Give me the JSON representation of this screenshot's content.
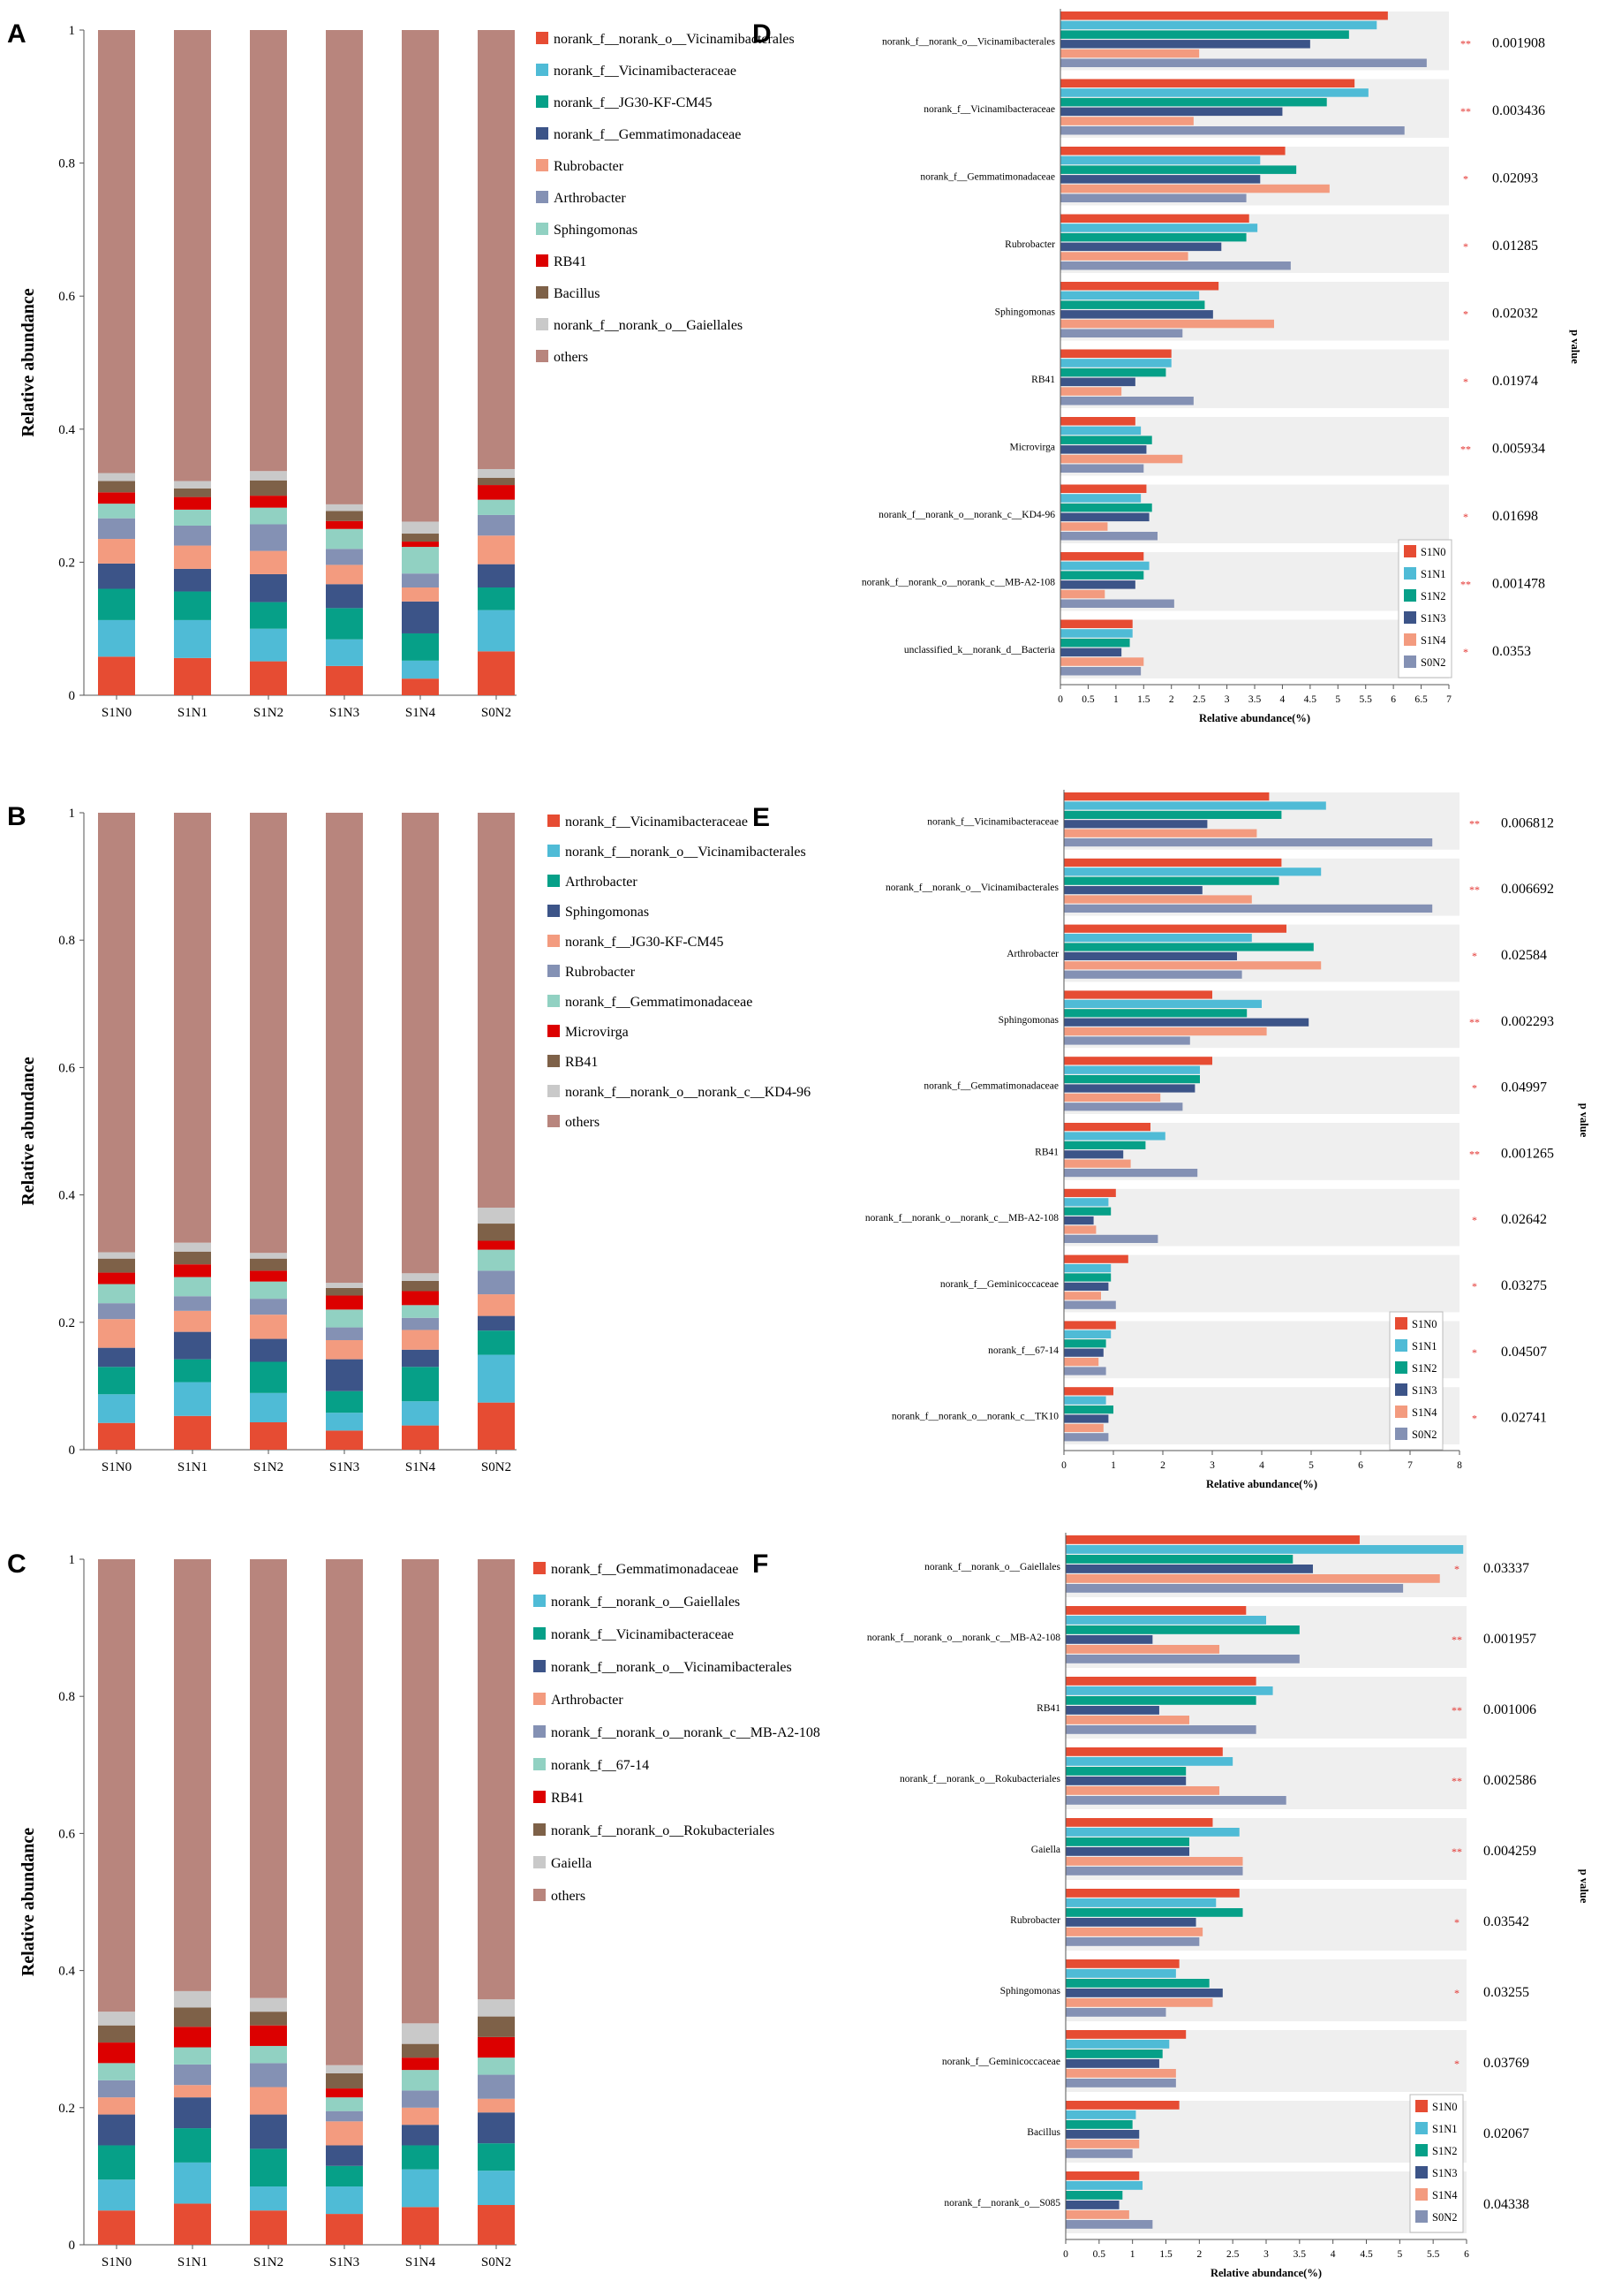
{
  "colors": {
    "S1N0": "#e64c33",
    "S1N1": "#4fbbd6",
    "S1N2": "#06a088",
    "S1N3": "#3c5488",
    "S1N4": "#f39b7f",
    "S0N2": "#8491b4",
    "panel_bg": "#efefef",
    "star": "#e3312d"
  },
  "chart_data": [
    {
      "panel": "A",
      "type": "bar",
      "stacked": true,
      "ylabel": "Relative abundance",
      "ylim": [
        0,
        1
      ],
      "yticks": [
        "0",
        "0.2",
        "0.4",
        "0.6",
        "0.8",
        "1"
      ],
      "categories": [
        "S1N0",
        "S1N1",
        "S1N2",
        "S1N3",
        "S1N4",
        "S0N2"
      ],
      "series": [
        {
          "name": "norank_f__norank_o__Vicinamibacterales",
          "color": "#e64c33",
          "values": [
            0.058,
            0.056,
            0.051,
            0.044,
            0.025,
            0.066
          ]
        },
        {
          "name": "norank_f__Vicinamibacteraceae",
          "color": "#4fbbd6",
          "values": [
            0.055,
            0.057,
            0.049,
            0.04,
            0.027,
            0.062
          ]
        },
        {
          "name": "norank_f__JG30-KF-CM45",
          "color": "#06a088",
          "values": [
            0.047,
            0.043,
            0.04,
            0.047,
            0.041,
            0.034
          ]
        },
        {
          "name": "norank_f__Gemmatimonadaceae",
          "color": "#3c5488",
          "values": [
            0.038,
            0.034,
            0.042,
            0.036,
            0.048,
            0.035
          ]
        },
        {
          "name": "Rubrobacter",
          "color": "#f39b7f",
          "values": [
            0.037,
            0.035,
            0.035,
            0.029,
            0.021,
            0.043
          ]
        },
        {
          "name": "Arthrobacter",
          "color": "#8491b4",
          "values": [
            0.031,
            0.03,
            0.04,
            0.024,
            0.021,
            0.031
          ]
        },
        {
          "name": "Sphingomonas",
          "color": "#91d1c2",
          "values": [
            0.022,
            0.024,
            0.025,
            0.03,
            0.04,
            0.023
          ]
        },
        {
          "name": "RB41",
          "color": "#dc0000",
          "values": [
            0.017,
            0.019,
            0.018,
            0.012,
            0.008,
            0.022
          ]
        },
        {
          "name": "Bacillus",
          "color": "#7e6148",
          "values": [
            0.017,
            0.013,
            0.023,
            0.015,
            0.012,
            0.011
          ]
        },
        {
          "name": "norank_f__norank_o__Gaiellales",
          "color": "#c9c9c9",
          "values": [
            0.012,
            0.011,
            0.014,
            0.01,
            0.018,
            0.013
          ]
        },
        {
          "name": "others",
          "color": "#b8857d",
          "values": [
            0.666,
            0.678,
            0.663,
            0.713,
            0.739,
            0.66
          ]
        }
      ]
    },
    {
      "panel": "B",
      "type": "bar",
      "stacked": true,
      "ylabel": "Relative abundance",
      "ylim": [
        0,
        1
      ],
      "yticks": [
        "0",
        "0.2",
        "0.4",
        "0.6",
        "0.8",
        "1"
      ],
      "categories": [
        "S1N0",
        "S1N1",
        "S1N2",
        "S1N3",
        "S1N4",
        "S0N2"
      ],
      "series": [
        {
          "name": "norank_f__Vicinamibacteraceae",
          "color": "#e64c33",
          "values": [
            0.042,
            0.053,
            0.043,
            0.03,
            0.038,
            0.074
          ]
        },
        {
          "name": "norank_f__norank_o__Vicinamibacterales",
          "color": "#4fbbd6",
          "values": [
            0.045,
            0.053,
            0.046,
            0.028,
            0.038,
            0.075
          ]
        },
        {
          "name": "Arthrobacter",
          "color": "#06a088",
          "values": [
            0.043,
            0.036,
            0.049,
            0.034,
            0.054,
            0.038
          ]
        },
        {
          "name": "Sphingomonas",
          "color": "#3c5488",
          "values": [
            0.03,
            0.043,
            0.036,
            0.05,
            0.027,
            0.023
          ]
        },
        {
          "name": "norank_f__JG30-KF-CM45",
          "color": "#f39b7f",
          "values": [
            0.045,
            0.033,
            0.038,
            0.03,
            0.031,
            0.034
          ]
        },
        {
          "name": "Rubrobacter",
          "color": "#8491b4",
          "values": [
            0.025,
            0.023,
            0.025,
            0.02,
            0.019,
            0.037
          ]
        },
        {
          "name": "norank_f__Gemmatimonadaceae",
          "color": "#91d1c2",
          "values": [
            0.03,
            0.03,
            0.027,
            0.028,
            0.02,
            0.033
          ]
        },
        {
          "name": "Microvirga",
          "color": "#dc0000",
          "values": [
            0.018,
            0.02,
            0.017,
            0.022,
            0.022,
            0.014
          ]
        },
        {
          "name": "RB41",
          "color": "#7e6148",
          "values": [
            0.022,
            0.02,
            0.019,
            0.012,
            0.016,
            0.027
          ]
        },
        {
          "name": "norank_f__norank_o__norank_c__KD4-96",
          "color": "#c9c9c9",
          "values": [
            0.01,
            0.014,
            0.009,
            0.008,
            0.012,
            0.025
          ]
        },
        {
          "name": "others",
          "color": "#b8857d",
          "values": [
            0.69,
            0.675,
            0.691,
            0.738,
            0.723,
            0.62
          ]
        }
      ]
    },
    {
      "panel": "C",
      "type": "bar",
      "stacked": true,
      "ylabel": "Relative abundance",
      "ylim": [
        0,
        1
      ],
      "yticks": [
        "0",
        "0.2",
        "0.4",
        "0.6",
        "0.8",
        "1"
      ],
      "categories": [
        "S1N0",
        "S1N1",
        "S1N2",
        "S1N3",
        "S1N4",
        "S0N2"
      ],
      "series": [
        {
          "name": "norank_f__Gemmatimonadaceae",
          "color": "#e64c33",
          "values": [
            0.05,
            0.06,
            0.05,
            0.045,
            0.055,
            0.058
          ]
        },
        {
          "name": "norank_f__norank_o__Gaiellales",
          "color": "#4fbbd6",
          "values": [
            0.045,
            0.06,
            0.035,
            0.04,
            0.055,
            0.05
          ]
        },
        {
          "name": "norank_f__Vicinamibacteraceae",
          "color": "#06a088",
          "values": [
            0.05,
            0.05,
            0.055,
            0.03,
            0.035,
            0.04
          ]
        },
        {
          "name": "norank_f__norank_o__Vicinamibacterales",
          "color": "#3c5488",
          "values": [
            0.045,
            0.045,
            0.05,
            0.03,
            0.03,
            0.045
          ]
        },
        {
          "name": "Arthrobacter",
          "color": "#f39b7f",
          "values": [
            0.025,
            0.018,
            0.04,
            0.035,
            0.025,
            0.02
          ]
        },
        {
          "name": "norank_f__norank_o__norank_c__MB-A2-108",
          "color": "#8491b4",
          "values": [
            0.025,
            0.03,
            0.035,
            0.015,
            0.025,
            0.035
          ]
        },
        {
          "name": "norank_f__67-14",
          "color": "#91d1c2",
          "values": [
            0.025,
            0.025,
            0.025,
            0.02,
            0.03,
            0.025
          ]
        },
        {
          "name": "RB41",
          "color": "#dc0000",
          "values": [
            0.03,
            0.03,
            0.03,
            0.013,
            0.018,
            0.03
          ]
        },
        {
          "name": "norank_f__norank_o__Rokubacteriales",
          "color": "#7e6148",
          "values": [
            0.025,
            0.028,
            0.02,
            0.022,
            0.02,
            0.03
          ]
        },
        {
          "name": "Gaiella",
          "color": "#c9c9c9",
          "values": [
            0.02,
            0.024,
            0.02,
            0.012,
            0.03,
            0.025
          ]
        },
        {
          "name": "others",
          "color": "#b8857d",
          "values": [
            0.66,
            0.63,
            0.64,
            0.738,
            0.677,
            0.642
          ]
        }
      ]
    },
    {
      "panel": "D",
      "type": "bar",
      "orientation": "horizontal",
      "xlabel": "Relative abundance(%)",
      "side_label": "p value",
      "xlim": [
        0,
        7
      ],
      "xticks": [
        "0",
        "0.5",
        "1",
        "1.5",
        "2",
        "2.5",
        "3",
        "3.5",
        "4",
        "4.5",
        "5",
        "5.5",
        "6",
        "6.5",
        "7"
      ],
      "legend": [
        "S1N0",
        "S1N1",
        "S1N2",
        "S1N3",
        "S1N4",
        "S0N2"
      ],
      "categories": [
        {
          "name": "norank_f__norank_o__Vicinamibacterales",
          "values": [
            5.9,
            5.7,
            5.2,
            4.5,
            2.5,
            6.6
          ],
          "p": "0.001908",
          "sig": "**"
        },
        {
          "name": "norank_f__Vicinamibacteraceae",
          "values": [
            5.3,
            5.55,
            4.8,
            4.0,
            2.4,
            6.2
          ],
          "p": "0.003436",
          "sig": "**"
        },
        {
          "name": "norank_f__Gemmatimonadaceae",
          "values": [
            4.05,
            3.6,
            4.25,
            3.6,
            4.85,
            3.35
          ],
          "p": "0.02093",
          "sig": "*"
        },
        {
          "name": "Rubrobacter",
          "values": [
            3.4,
            3.55,
            3.35,
            2.9,
            2.3,
            4.15
          ],
          "p": "0.01285",
          "sig": "*"
        },
        {
          "name": "Sphingomonas",
          "values": [
            2.85,
            2.5,
            2.6,
            2.75,
            3.85,
            2.2
          ],
          "p": "0.02032",
          "sig": "*"
        },
        {
          "name": "RB41",
          "values": [
            2.0,
            2.0,
            1.9,
            1.35,
            1.1,
            2.4
          ],
          "p": "0.01974",
          "sig": "*"
        },
        {
          "name": "Microvirga",
          "values": [
            1.35,
            1.45,
            1.65,
            1.55,
            2.2,
            1.5
          ],
          "p": "0.005934",
          "sig": "**"
        },
        {
          "name": "norank_f__norank_o__norank_c__KD4-96",
          "values": [
            1.55,
            1.45,
            1.65,
            1.6,
            0.85,
            1.75
          ],
          "p": "0.01698",
          "sig": "*"
        },
        {
          "name": "norank_f__norank_o__norank_c__MB-A2-108",
          "values": [
            1.5,
            1.6,
            1.5,
            1.35,
            0.8,
            2.05
          ],
          "p": "0.001478",
          "sig": "**"
        },
        {
          "name": "unclassified_k__norank_d__Bacteria",
          "values": [
            1.3,
            1.3,
            1.25,
            1.1,
            1.5,
            1.45
          ],
          "p": "0.0353",
          "sig": "*"
        }
      ]
    },
    {
      "panel": "E",
      "type": "bar",
      "orientation": "horizontal",
      "xlabel": "Relative abundance(%)",
      "side_label": "p value",
      "xlim": [
        0,
        8
      ],
      "xticks": [
        "0",
        "1",
        "2",
        "3",
        "4",
        "5",
        "6",
        "7",
        "8"
      ],
      "legend": [
        "S1N0",
        "S1N1",
        "S1N2",
        "S1N3",
        "S1N4",
        "S0N2"
      ],
      "categories": [
        {
          "name": "norank_f__Vicinamibacteraceae",
          "values": [
            4.15,
            5.3,
            4.4,
            2.9,
            3.9,
            7.45
          ],
          "p": "0.006812",
          "sig": "**"
        },
        {
          "name": "norank_f__norank_o__Vicinamibacterales",
          "values": [
            4.4,
            5.2,
            4.35,
            2.8,
            3.8,
            7.45
          ],
          "p": "0.006692",
          "sig": "**"
        },
        {
          "name": "Arthrobacter",
          "values": [
            4.5,
            3.8,
            5.05,
            3.5,
            5.2,
            3.6
          ],
          "p": "0.02584",
          "sig": "*"
        },
        {
          "name": "Sphingomonas",
          "values": [
            3.0,
            4.0,
            3.7,
            4.95,
            4.1,
            2.55
          ],
          "p": "0.002293",
          "sig": "**"
        },
        {
          "name": "norank_f__Gemmatimonadaceae",
          "values": [
            3.0,
            2.75,
            2.75,
            2.65,
            1.95,
            2.4
          ],
          "p": "0.04997",
          "sig": "*"
        },
        {
          "name": "RB41",
          "values": [
            1.75,
            2.05,
            1.65,
            1.2,
            1.35,
            2.7
          ],
          "p": "0.001265",
          "sig": "**"
        },
        {
          "name": "norank_f__norank_o__norank_c__MB-A2-108",
          "values": [
            1.05,
            0.9,
            0.95,
            0.6,
            0.65,
            1.9
          ],
          "p": "0.02642",
          "sig": "*"
        },
        {
          "name": "norank_f__Geminicoccaceae",
          "values": [
            1.3,
            0.95,
            0.95,
            0.9,
            0.75,
            1.05
          ],
          "p": "0.03275",
          "sig": "*"
        },
        {
          "name": "norank_f__67-14",
          "values": [
            1.05,
            0.95,
            0.85,
            0.8,
            0.7,
            0.85
          ],
          "p": "0.04507",
          "sig": "*"
        },
        {
          "name": "norank_f__norank_o__norank_c__TK10",
          "values": [
            1.0,
            0.85,
            1.0,
            0.9,
            0.8,
            0.9
          ],
          "p": "0.02741",
          "sig": "*"
        }
      ]
    },
    {
      "panel": "F",
      "type": "bar",
      "orientation": "horizontal",
      "xlabel": "Relative abundance(%)",
      "side_label": "p value",
      "xlim": [
        0,
        6
      ],
      "xticks": [
        "0",
        "0.5",
        "1",
        "1.5",
        "2",
        "2.5",
        "3",
        "3.5",
        "4",
        "4.5",
        "5",
        "5.5",
        "6"
      ],
      "legend": [
        "S1N0",
        "S1N1",
        "S1N2",
        "S1N3",
        "S1N4",
        "S0N2"
      ],
      "categories": [
        {
          "name": "norank_f__norank_o__Gaiellales",
          "values": [
            4.4,
            5.95,
            3.4,
            3.7,
            5.6,
            5.05
          ],
          "p": "0.03337",
          "sig": "*"
        },
        {
          "name": "norank_f__norank_o__norank_c__MB-A2-108",
          "values": [
            2.7,
            3.0,
            3.5,
            1.3,
            2.3,
            3.5
          ],
          "p": "0.001957",
          "sig": "**"
        },
        {
          "name": "RB41",
          "values": [
            2.85,
            3.1,
            2.85,
            1.4,
            1.85,
            2.85
          ],
          "p": "0.001006",
          "sig": "**"
        },
        {
          "name": "norank_f__norank_o__Rokubacteriales",
          "values": [
            2.35,
            2.5,
            1.8,
            1.8,
            2.3,
            3.3
          ],
          "p": "0.002586",
          "sig": "**"
        },
        {
          "name": "Gaiella",
          "values": [
            2.2,
            2.6,
            1.85,
            1.85,
            2.65,
            2.65
          ],
          "p": "0.004259",
          "sig": "**"
        },
        {
          "name": "Rubrobacter",
          "values": [
            2.6,
            2.25,
            2.65,
            1.95,
            2.05,
            2.0
          ],
          "p": "0.03542",
          "sig": "*"
        },
        {
          "name": "Sphingomonas",
          "values": [
            1.7,
            1.65,
            2.15,
            2.35,
            2.2,
            1.5
          ],
          "p": "0.03255",
          "sig": "*"
        },
        {
          "name": "norank_f__Geminicoccaceae",
          "values": [
            1.8,
            1.55,
            1.45,
            1.4,
            1.65,
            1.65
          ],
          "p": "0.03769",
          "sig": "*"
        },
        {
          "name": "Bacillus",
          "values": [
            1.7,
            1.05,
            1.0,
            1.1,
            1.1,
            1.0
          ],
          "p": "0.02067",
          "sig": "*"
        },
        {
          "name": "norank_f__norank_o__S085",
          "values": [
            1.1,
            1.15,
            0.85,
            0.8,
            0.95,
            1.3
          ],
          "p": "0.04338",
          "sig": "*"
        }
      ]
    }
  ]
}
